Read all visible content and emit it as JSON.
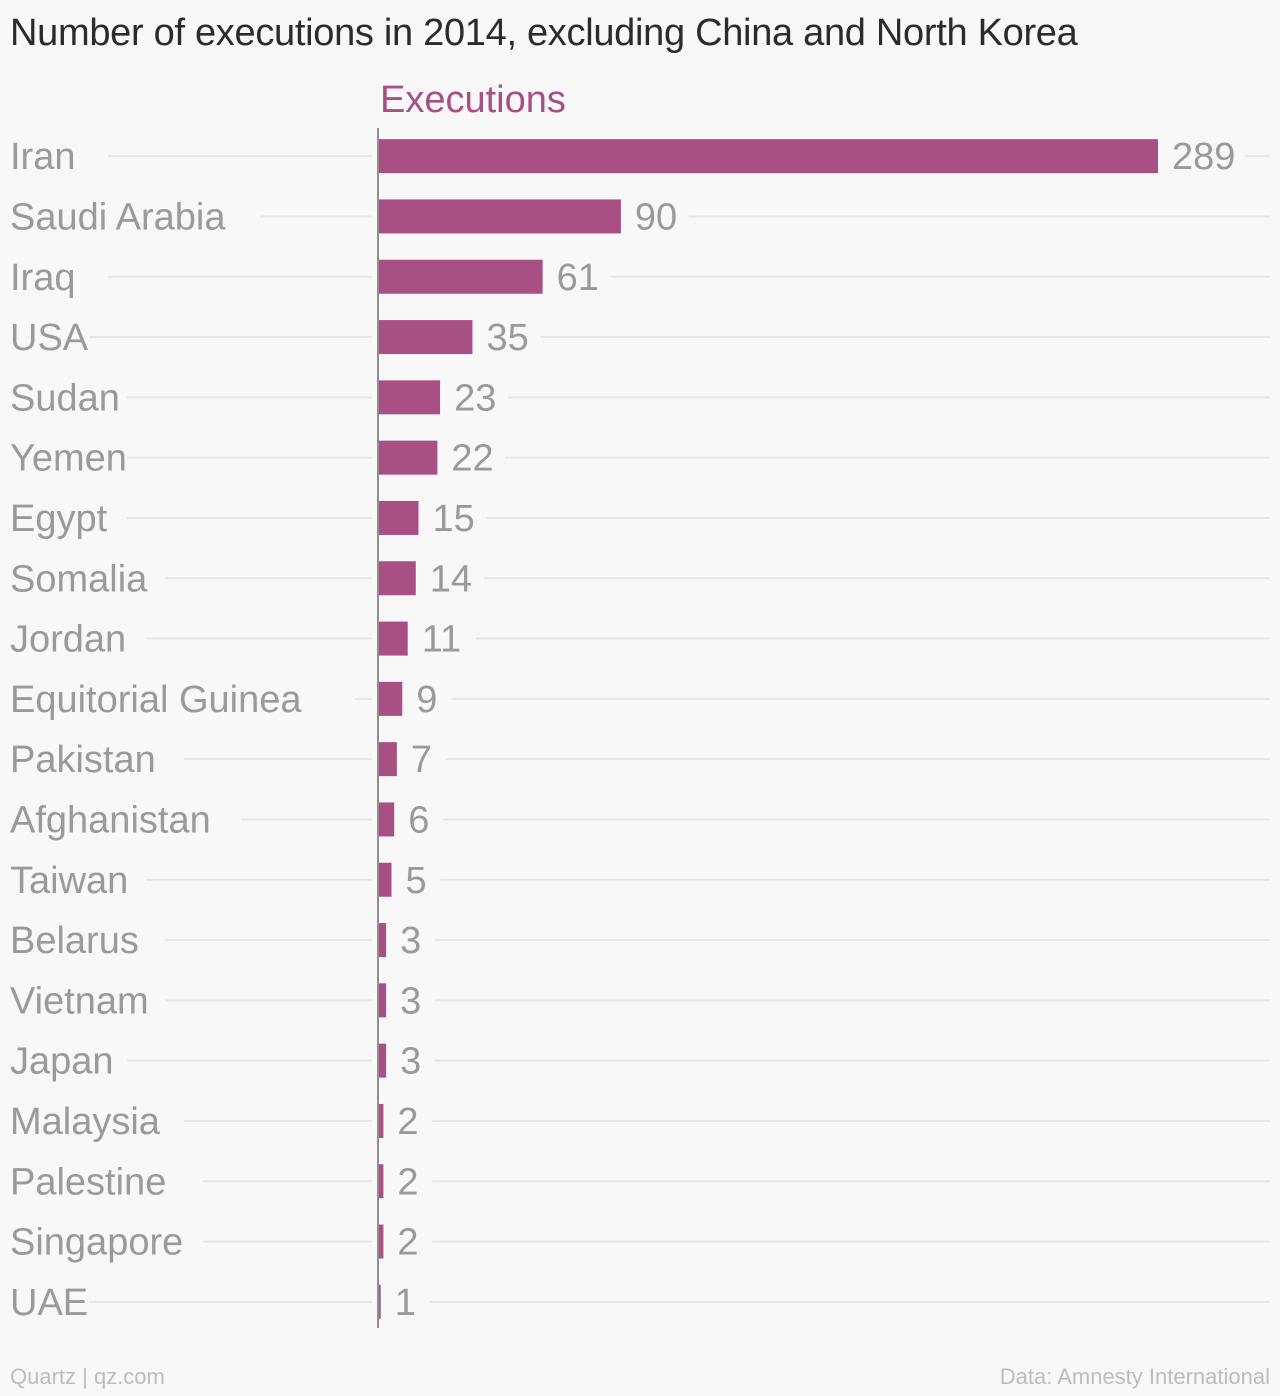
{
  "colors": {
    "bar": "#a84f84",
    "series_label": "#a84f84",
    "title": "#2b2b2b",
    "category_label": "#9a9a9a",
    "value_label": "#9a9a9a",
    "grid": "#e6e6e6",
    "axis": "#8f8f8f",
    "footer": "#bdbdbd",
    "background": "#f8f8f8"
  },
  "footer": {
    "source_left": "Quartz | qz.com",
    "source_right": "Data: Amnesty International"
  },
  "chart_data": {
    "type": "bar",
    "orientation": "horizontal",
    "title": "Number of executions in 2014, excluding China and North Korea",
    "categories": [
      "Iran",
      "Saudi Arabia",
      "Iraq",
      "USA",
      "Sudan",
      "Yemen",
      "Egypt",
      "Somalia",
      "Jordan",
      "Equitorial Guinea",
      "Pakistan",
      "Afghanistan",
      "Taiwan",
      "Belarus",
      "Vietnam",
      "Japan",
      "Malaysia",
      "Palestine",
      "Singapore",
      "UAE"
    ],
    "series": [
      {
        "name": "Executions",
        "values": [
          289,
          90,
          61,
          35,
          23,
          22,
          15,
          14,
          11,
          9,
          7,
          6,
          5,
          3,
          3,
          3,
          2,
          2,
          2,
          1
        ]
      }
    ],
    "xlim": [
      0,
      289
    ],
    "grid": true,
    "data_labels": true
  }
}
